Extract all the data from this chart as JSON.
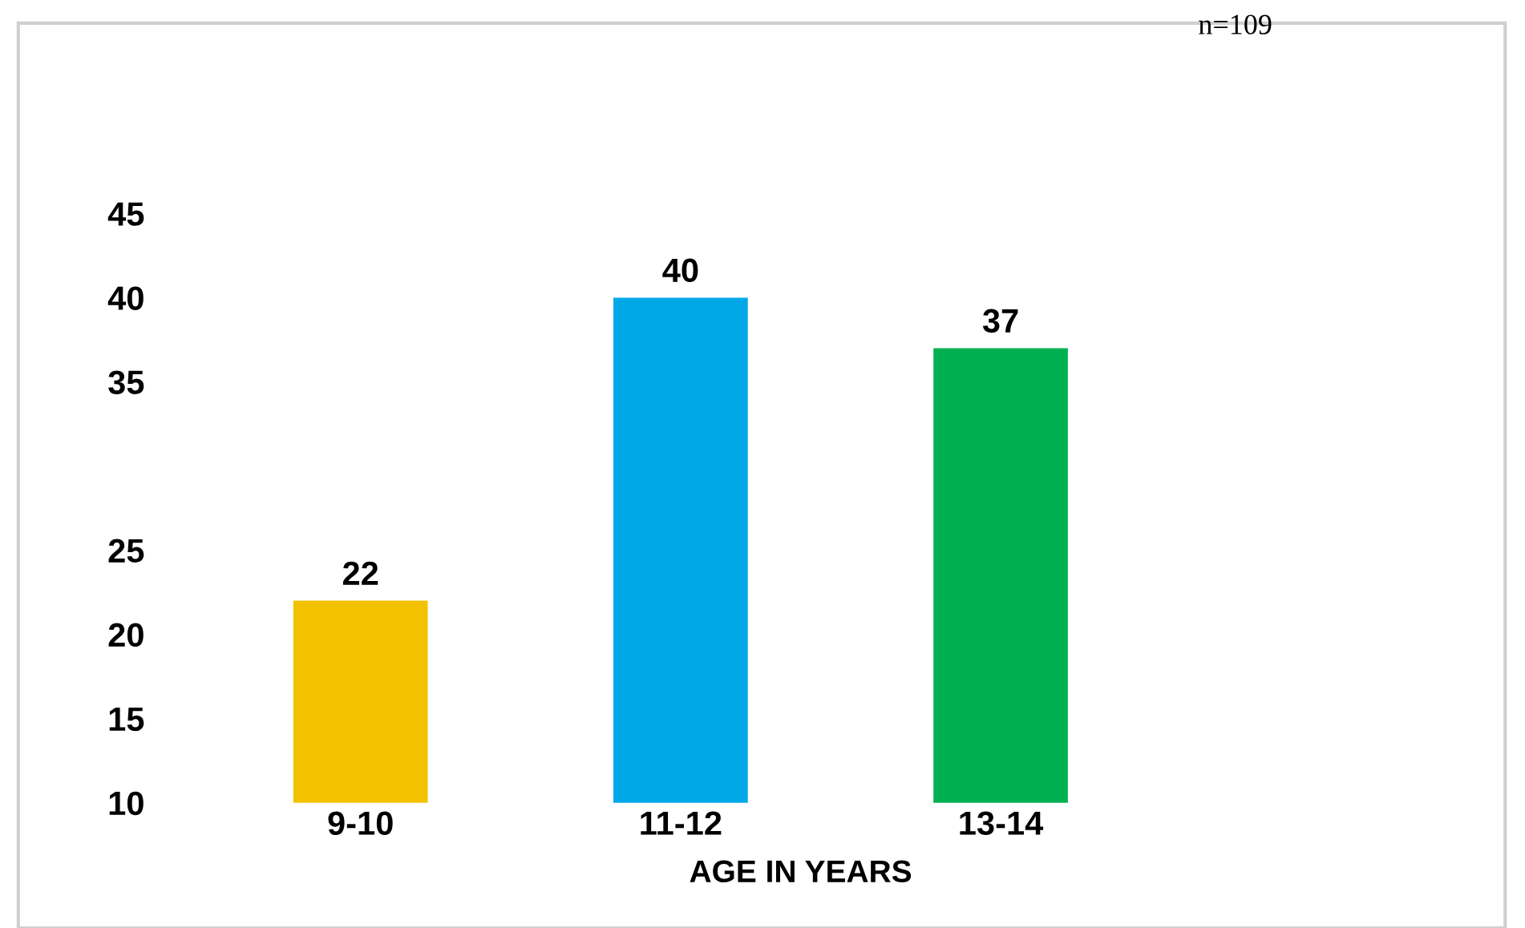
{
  "chart_data": {
    "type": "bar",
    "categories": [
      "9-10",
      "11-12",
      "13-14"
    ],
    "values": [
      22,
      40,
      37
    ],
    "colors": [
      "#f2c200",
      "#00a8e8",
      "#00b050"
    ],
    "xlabel": "AGE IN YEARS",
    "ylim": [
      10,
      45
    ],
    "yticks": [
      10,
      15,
      20,
      25,
      35,
      40,
      45
    ],
    "data_labels": true,
    "annotations": [
      "n=109"
    ]
  }
}
